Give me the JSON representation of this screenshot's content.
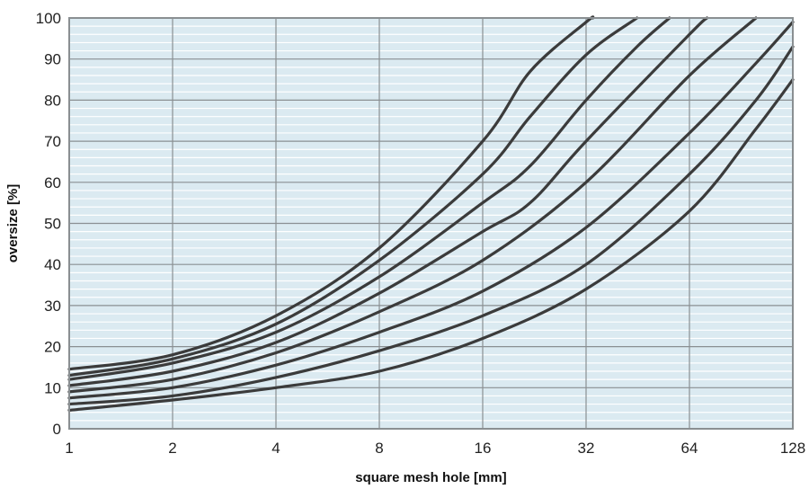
{
  "chart_data": {
    "type": "line",
    "title": "",
    "xlabel": "square mesh hole [mm]",
    "ylabel": "oversize [%]",
    "x_scale": "log2",
    "xlim": [
      1,
      128
    ],
    "ylim": [
      0,
      100
    ],
    "x_ticks": [
      1,
      2,
      4,
      8,
      16,
      32,
      64,
      128
    ],
    "y_ticks": [
      0,
      10,
      20,
      30,
      40,
      50,
      60,
      70,
      80,
      90,
      100
    ],
    "grid": {
      "major": true,
      "minor_y_step": 2
    },
    "colors": {
      "plot_bg": "#dbeaf1",
      "grid_minor": "#ffffff",
      "grid_major": "#8a8f92",
      "line": "#3b3b3b",
      "frame": "#8a8f92"
    },
    "series": [
      {
        "points": [
          [
            1,
            14.5
          ],
          [
            2,
            18
          ],
          [
            4,
            27.5
          ],
          [
            8,
            44
          ],
          [
            16,
            70
          ],
          [
            22,
            87
          ],
          [
            32,
            99
          ],
          [
            33.5,
            100
          ]
        ]
      },
      {
        "points": [
          [
            1,
            13
          ],
          [
            2,
            17
          ],
          [
            4,
            25.5
          ],
          [
            8,
            41
          ],
          [
            16,
            62
          ],
          [
            22,
            76
          ],
          [
            32,
            91
          ],
          [
            45,
            100
          ]
        ]
      },
      {
        "points": [
          [
            1,
            12
          ],
          [
            2,
            16
          ],
          [
            4,
            23.5
          ],
          [
            8,
            37
          ],
          [
            16,
            55
          ],
          [
            22,
            64
          ],
          [
            32,
            80
          ],
          [
            45,
            93
          ],
          [
            56,
            100
          ]
        ]
      },
      {
        "points": [
          [
            1,
            10.5
          ],
          [
            2,
            14
          ],
          [
            4,
            21
          ],
          [
            8,
            33
          ],
          [
            16,
            48
          ],
          [
            22,
            55
          ],
          [
            32,
            70
          ],
          [
            64,
            96
          ],
          [
            72,
            100
          ]
        ]
      },
      {
        "points": [
          [
            1,
            9
          ],
          [
            2,
            12
          ],
          [
            4,
            18.5
          ],
          [
            8,
            28.5
          ],
          [
            16,
            41
          ],
          [
            32,
            60
          ],
          [
            64,
            86
          ],
          [
            100,
            100
          ]
        ]
      },
      {
        "points": [
          [
            1,
            7.5
          ],
          [
            2,
            10
          ],
          [
            4,
            15.5
          ],
          [
            8,
            23.5
          ],
          [
            16,
            33.5
          ],
          [
            32,
            49
          ],
          [
            64,
            72
          ],
          [
            100,
            89
          ],
          [
            128,
            99
          ]
        ]
      },
      {
        "points": [
          [
            1,
            6
          ],
          [
            2,
            8
          ],
          [
            4,
            12.5
          ],
          [
            8,
            19
          ],
          [
            16,
            27.5
          ],
          [
            32,
            40
          ],
          [
            64,
            62
          ],
          [
            100,
            80
          ],
          [
            128,
            93
          ]
        ]
      },
      {
        "points": [
          [
            1,
            4.5
          ],
          [
            2,
            7
          ],
          [
            4,
            10
          ],
          [
            8,
            14
          ],
          [
            16,
            22
          ],
          [
            32,
            34
          ],
          [
            64,
            53
          ],
          [
            100,
            73
          ],
          [
            128,
            85
          ]
        ]
      }
    ]
  }
}
